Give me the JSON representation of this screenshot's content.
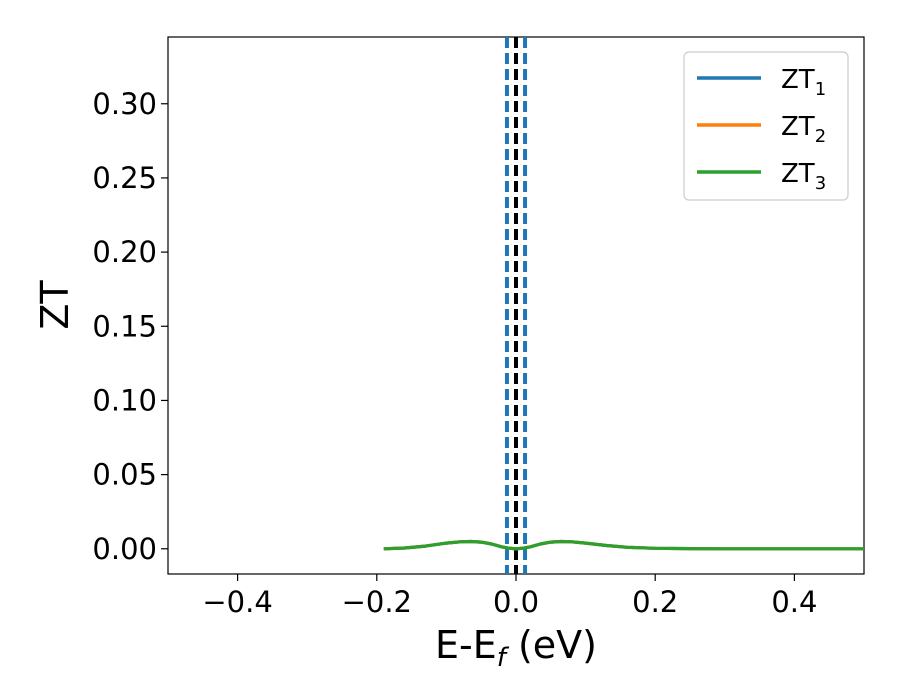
{
  "chart_data": {
    "type": "line",
    "title": "",
    "xlabel": "E-E",
    "xlabel_sub": "f",
    "xlabel_unit": " (eV)",
    "ylabel": "ZT",
    "xlim": [
      -0.5,
      0.5
    ],
    "ylim": [
      -0.017,
      0.345
    ],
    "xticks": [
      -0.4,
      -0.2,
      0.0,
      0.2,
      0.4
    ],
    "xtick_labels": [
      "−0.4",
      "−0.2",
      "0.0",
      "0.2",
      "0.4"
    ],
    "yticks": [
      0.0,
      0.05,
      0.1,
      0.15,
      0.2,
      0.25,
      0.3
    ],
    "ytick_labels": [
      "0.00",
      "0.05",
      "0.10",
      "0.15",
      "0.20",
      "0.25",
      "0.30"
    ],
    "grid": false,
    "legend_position": "top-right",
    "series": [
      {
        "name": "ZT",
        "name_sub": "1",
        "color": "#1f77b4",
        "x": [
          -0.19,
          -0.16,
          -0.13,
          -0.1,
          -0.08,
          -0.065,
          -0.05,
          -0.035,
          -0.02,
          -0.01,
          0.0,
          0.01,
          0.02,
          0.035,
          0.05,
          0.065,
          0.08,
          0.1,
          0.13,
          0.16,
          0.2,
          0.25,
          0.3,
          0.4,
          0.5
        ],
        "y": [
          0.0,
          0.0005,
          0.0018,
          0.0038,
          0.0047,
          0.0049,
          0.0045,
          0.0032,
          0.0013,
          0.0004,
          0.0,
          0.0004,
          0.0013,
          0.0032,
          0.0045,
          0.0049,
          0.0047,
          0.0038,
          0.0022,
          0.001,
          0.0003,
          0.0001,
          0.0,
          0.0,
          0.0
        ]
      },
      {
        "name": "ZT",
        "name_sub": "2",
        "color": "#ff7f0e",
        "x": [
          -0.19,
          -0.16,
          -0.13,
          -0.1,
          -0.08,
          -0.065,
          -0.05,
          -0.035,
          -0.02,
          -0.01,
          0.0,
          0.01,
          0.02,
          0.035,
          0.05,
          0.065,
          0.08,
          0.1,
          0.13,
          0.16,
          0.2,
          0.25,
          0.3,
          0.4,
          0.5
        ],
        "y": [
          0.0,
          0.0005,
          0.0018,
          0.0038,
          0.0047,
          0.0049,
          0.0045,
          0.0032,
          0.0013,
          0.0004,
          0.0,
          0.0004,
          0.0013,
          0.0032,
          0.0045,
          0.0049,
          0.0047,
          0.0038,
          0.0022,
          0.001,
          0.0003,
          0.0001,
          0.0,
          0.0,
          0.0
        ]
      },
      {
        "name": "ZT",
        "name_sub": "3",
        "color": "#2ca02c",
        "x": [
          -0.19,
          -0.16,
          -0.13,
          -0.1,
          -0.08,
          -0.065,
          -0.05,
          -0.035,
          -0.02,
          -0.01,
          0.0,
          0.01,
          0.02,
          0.035,
          0.05,
          0.065,
          0.08,
          0.1,
          0.13,
          0.16,
          0.2,
          0.25,
          0.3,
          0.4,
          0.5
        ],
        "y": [
          0.0,
          0.0005,
          0.0018,
          0.0038,
          0.0047,
          0.0049,
          0.0045,
          0.0032,
          0.0013,
          0.0004,
          0.0,
          0.0004,
          0.0013,
          0.0032,
          0.0045,
          0.0049,
          0.0047,
          0.0038,
          0.0022,
          0.001,
          0.0003,
          0.0001,
          0.0,
          0.0,
          0.0
        ]
      }
    ],
    "vlines": [
      {
        "x": 0.0,
        "color": "#000000",
        "style": "dashed"
      },
      {
        "x": -0.013,
        "color": "#1f77b4",
        "style": "dashed"
      },
      {
        "x": 0.013,
        "color": "#1f77b4",
        "style": "dashed"
      }
    ]
  }
}
